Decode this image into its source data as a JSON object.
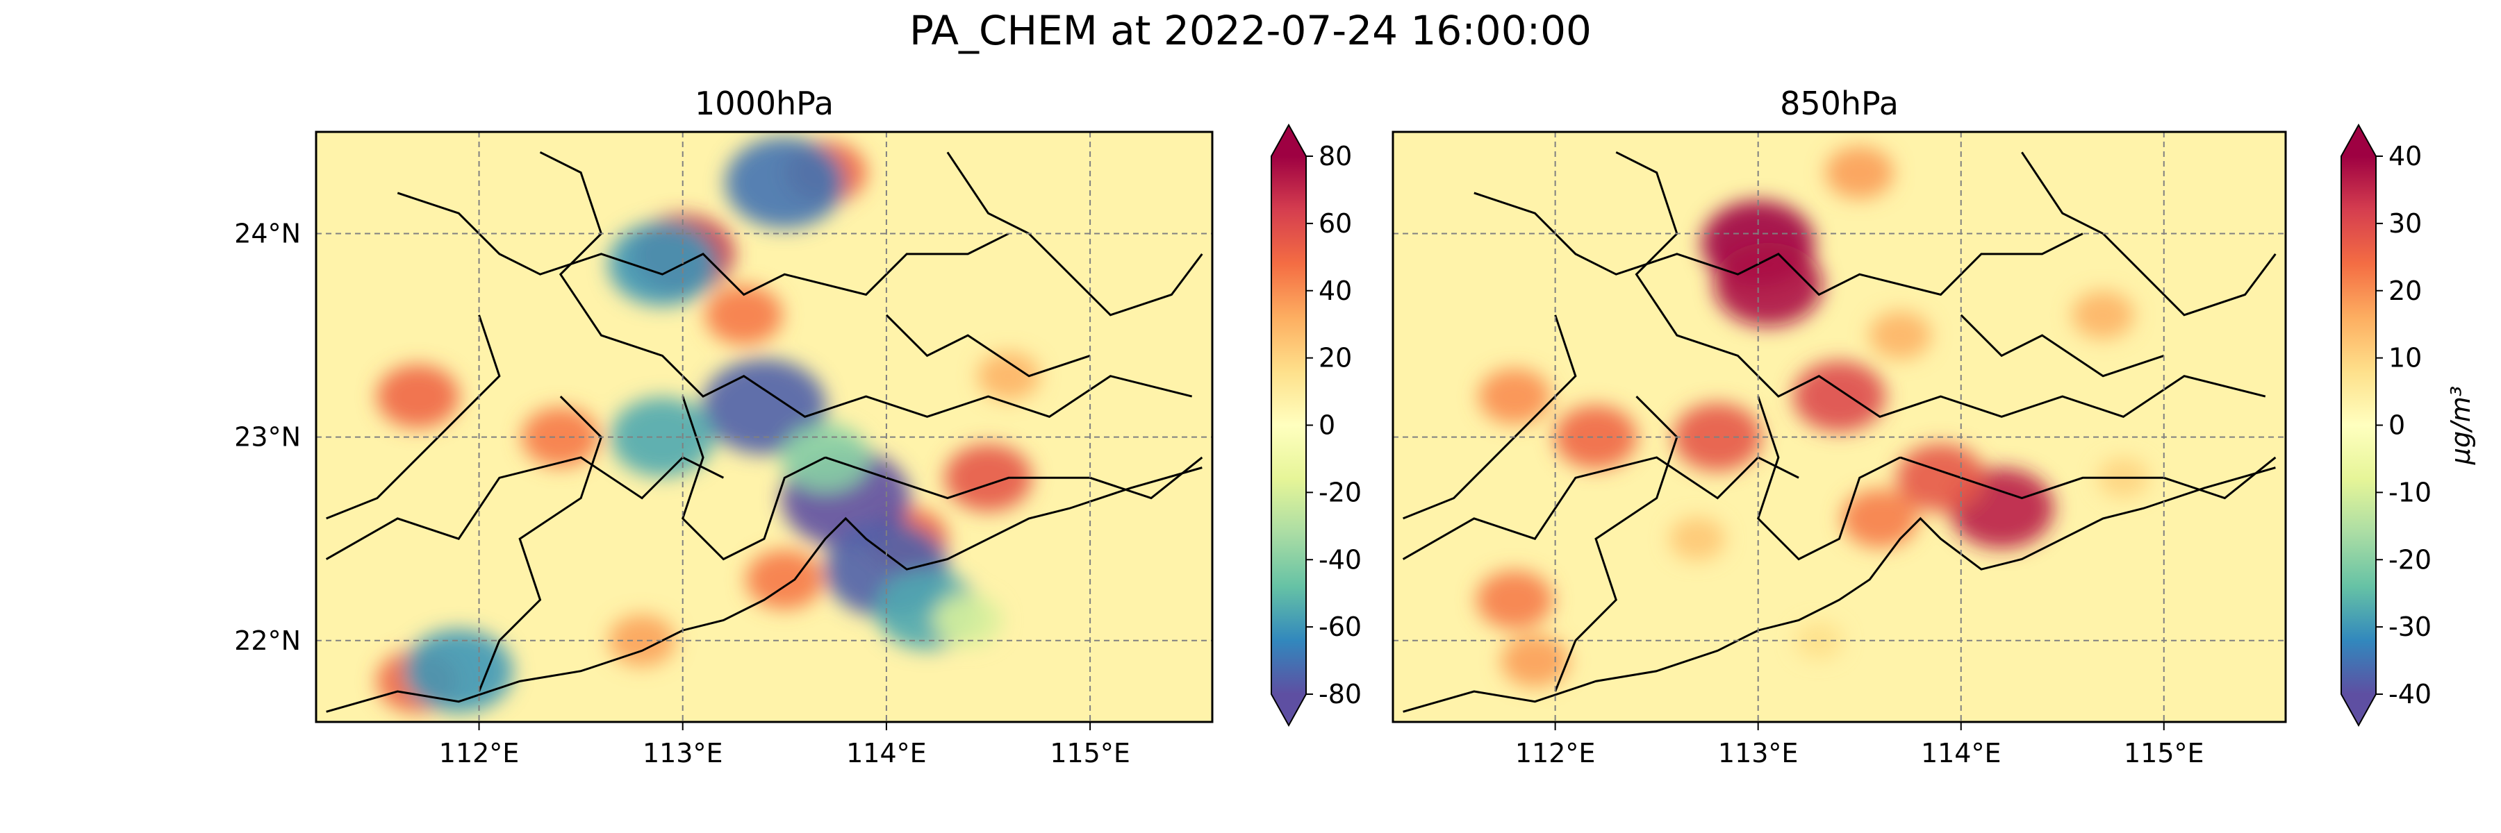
{
  "figure": {
    "title": "PA_CHEM at 2022-07-24 16:00:00"
  },
  "colormap": {
    "name": "Spectral_r",
    "stops": [
      "#5e4fa2",
      "#3288bd",
      "#66c2a5",
      "#abdda4",
      "#e6f598",
      "#ffffbf",
      "#fee08b",
      "#fdae61",
      "#f46d43",
      "#d53e4f",
      "#9e0142"
    ]
  },
  "chart_data": [
    {
      "type": "heatmap",
      "title": "1000hPa",
      "lon_ticks": [
        "112°E",
        "113°E",
        "114°E",
        "115°E"
      ],
      "lat_ticks": [
        "22°N",
        "23°N",
        "24°N"
      ],
      "lon_range": [
        111.2,
        115.6
      ],
      "lat_range": [
        21.6,
        24.5
      ],
      "colorbar": {
        "range": [
          -80,
          80
        ],
        "ticks": [
          "80",
          "60",
          "40",
          "20",
          "0",
          "-20",
          "-40",
          "-60",
          "-80"
        ],
        "label": "",
        "extend": "both"
      },
      "hotspots": [
        {
          "lon": 113.0,
          "lat": 23.9,
          "value": 70
        },
        {
          "lon": 113.7,
          "lat": 24.3,
          "value": 50
        },
        {
          "lon": 112.4,
          "lat": 23.0,
          "value": 45
        },
        {
          "lon": 111.7,
          "lat": 23.2,
          "value": 50
        },
        {
          "lon": 113.3,
          "lat": 23.6,
          "value": 45
        },
        {
          "lon": 114.5,
          "lat": 22.8,
          "value": 55
        },
        {
          "lon": 114.1,
          "lat": 22.5,
          "value": 50
        },
        {
          "lon": 113.5,
          "lat": 22.3,
          "value": 45
        },
        {
          "lon": 111.7,
          "lat": 21.8,
          "value": 50
        },
        {
          "lon": 112.8,
          "lat": 22.0,
          "value": 35
        },
        {
          "lon": 114.6,
          "lat": 23.3,
          "value": 30
        },
        {
          "lon": 113.4,
          "lat": 23.15,
          "value": -75
        },
        {
          "lon": 113.8,
          "lat": 22.7,
          "value": -80
        },
        {
          "lon": 114.0,
          "lat": 22.35,
          "value": -75
        },
        {
          "lon": 114.2,
          "lat": 22.15,
          "value": -55
        },
        {
          "lon": 113.5,
          "lat": 24.25,
          "value": -70
        },
        {
          "lon": 112.9,
          "lat": 23.85,
          "value": -60
        },
        {
          "lon": 112.9,
          "lat": 23.0,
          "value": -55
        },
        {
          "lon": 111.9,
          "lat": 21.85,
          "value": -60
        },
        {
          "lon": 113.7,
          "lat": 22.9,
          "value": -40
        },
        {
          "lon": 114.4,
          "lat": 22.1,
          "value": -20
        }
      ]
    },
    {
      "type": "heatmap",
      "title": "850hPa",
      "lon_ticks": [
        "112°E",
        "113°E",
        "114°E",
        "115°E"
      ],
      "lat_ticks": [
        "22°N",
        "23°N",
        "24°N"
      ],
      "lon_range": [
        111.2,
        115.6
      ],
      "lat_range": [
        21.6,
        24.5
      ],
      "colorbar": {
        "range": [
          -40,
          40
        ],
        "ticks": [
          "40",
          "30",
          "20",
          "10",
          "0",
          "-10",
          "-20",
          "-30",
          "-40"
        ],
        "label": "μg/m³",
        "extend": "both"
      },
      "hotspots": [
        {
          "lon": 113.0,
          "lat": 23.95,
          "value": 40
        },
        {
          "lon": 113.05,
          "lat": 23.75,
          "value": 38
        },
        {
          "lon": 113.4,
          "lat": 23.2,
          "value": 30
        },
        {
          "lon": 112.8,
          "lat": 23.0,
          "value": 28
        },
        {
          "lon": 114.2,
          "lat": 22.65,
          "value": 36
        },
        {
          "lon": 113.9,
          "lat": 22.8,
          "value": 28
        },
        {
          "lon": 113.6,
          "lat": 22.6,
          "value": 22
        },
        {
          "lon": 112.2,
          "lat": 23.0,
          "value": 25
        },
        {
          "lon": 111.8,
          "lat": 23.2,
          "value": 20
        },
        {
          "lon": 113.7,
          "lat": 23.5,
          "value": 15
        },
        {
          "lon": 114.7,
          "lat": 23.6,
          "value": 15
        },
        {
          "lon": 111.8,
          "lat": 22.2,
          "value": 22
        },
        {
          "lon": 111.9,
          "lat": 21.9,
          "value": 18
        },
        {
          "lon": 113.5,
          "lat": 24.3,
          "value": 18
        },
        {
          "lon": 114.8,
          "lat": 22.8,
          "value": 10
        },
        {
          "lon": 112.7,
          "lat": 22.5,
          "value": 12
        },
        {
          "lon": 113.3,
          "lat": 22.0,
          "value": 8
        }
      ]
    }
  ]
}
